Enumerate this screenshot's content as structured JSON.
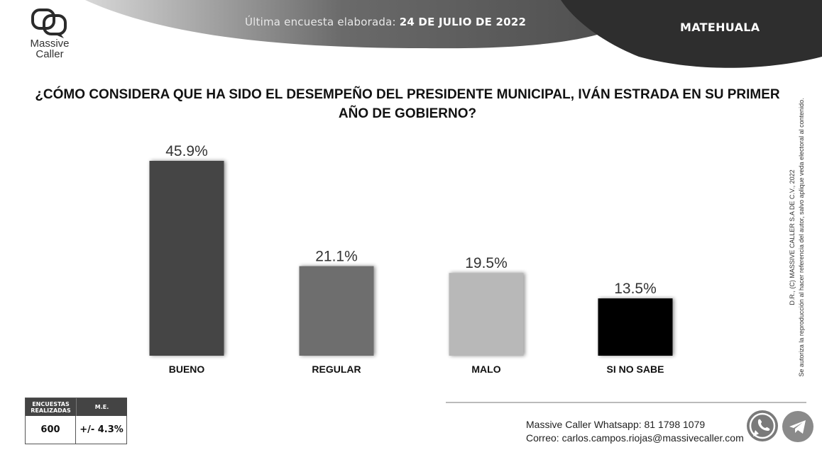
{
  "header": {
    "logo_text_line1": "Massive",
    "logo_text_line2": "Caller",
    "date_prefix": "Última encuesta elaborada:",
    "date_value": "24 DE JULIO DE 2022",
    "location": "MATEHUALA"
  },
  "question": "¿CÓMO CONSIDERA QUE HA SIDO EL DESEMPEÑO DEL PRESIDENTE MUNICIPAL, IVÁN ESTRADA EN SU PRIMER AÑO DE GOBIERNO?",
  "chart_data": {
    "type": "bar",
    "title": "¿CÓMO CONSIDERA QUE HA SIDO EL DESEMPEÑO DEL PRESIDENTE MUNICIPAL, IVÁN ESTRADA EN SU PRIMER AÑO DE GOBIERNO?",
    "categories": [
      "BUENO",
      "REGULAR",
      "MALO",
      "SI NO SABE"
    ],
    "values": [
      45.9,
      21.1,
      19.5,
      13.5
    ],
    "labels": [
      "45.9%",
      "21.1%",
      "19.5%",
      "13.5%"
    ],
    "colors": [
      "#454545",
      "#6e6e6e",
      "#b8b8b8",
      "#000000"
    ],
    "xlabel": "",
    "ylabel": "",
    "ylim": [
      0,
      50
    ],
    "grid": false,
    "legend": "none"
  },
  "disclaimer": {
    "line1": "D.R., (C) MASSIVE CALLER S.A DE C.V., 2022",
    "line2": "Se autoriza la reproducción al hacer referencia del autor, salvo aplique veda electoral al contenido."
  },
  "stats": {
    "header1": "ENCUESTAS REALIZADAS",
    "header2": "M.E.",
    "surveys": "600",
    "margin": "+/- 4.3%"
  },
  "contact": {
    "whatsapp_label": "Massive Caller Whatsapp:",
    "whatsapp_number": "81 1798 1079",
    "email_label": "Correo:",
    "email": "carlos.campos.riojas@massivecaller.com"
  },
  "icons": {
    "whatsapp": "whatsapp-icon",
    "telegram": "telegram-icon"
  }
}
